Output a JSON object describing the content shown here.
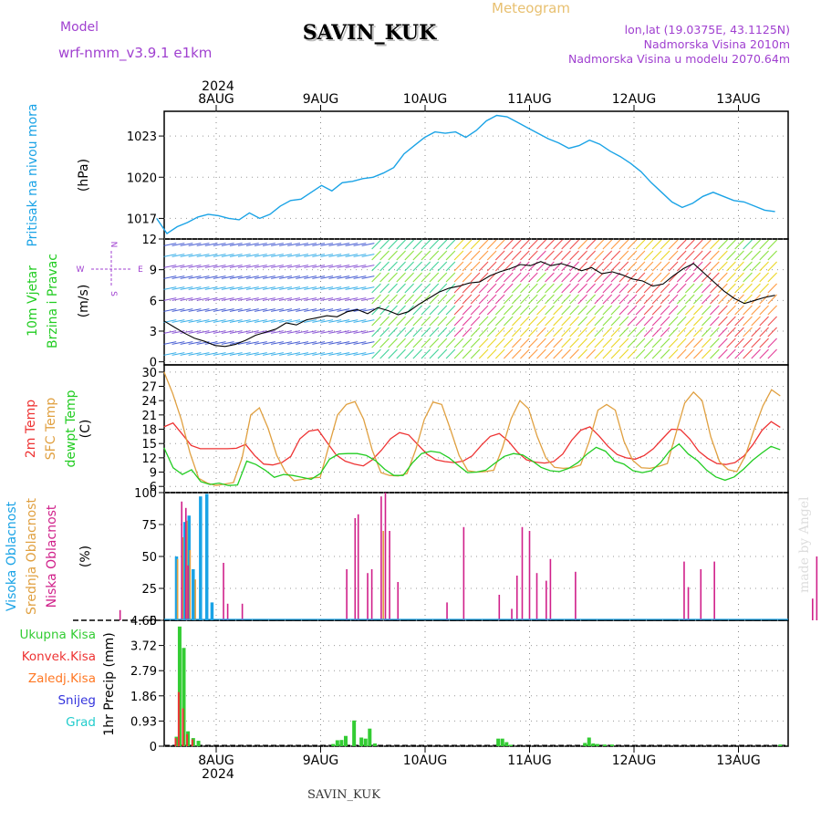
{
  "header": {
    "model_label": "Model",
    "model_value": "wrf-nmm_v3.9.1 e1km",
    "station": "SAVIN_KUK",
    "meteogram": "Meteogram",
    "lonlat": "lon,lat (19.0375E, 43.1125N)",
    "elevation": "Nadmorska Visina 2010m",
    "model_elevation": "Nadmorska Visina u modelu 2070.64m",
    "footer_station": "SAVIN_KUK",
    "credit": "made by Angel"
  },
  "colors": {
    "pressure": "#1aa3e6",
    "wind_label": "#22cc22",
    "t2m": "#ee3333",
    "sfc": "#e0a040",
    "dewpt": "#22cc22",
    "cloud_high": "#1aa3e6",
    "cloud_mid": "#e0a040",
    "cloud_low": "#d0208a",
    "precip_total": "#33cc33",
    "precip_conv": "#ee3333",
    "precip_frz": "#ff7722",
    "precip_snow": "#3333dd",
    "precip_hail": "#22cccc",
    "purple": "#a040d0",
    "gold": "#e8c070"
  },
  "axis": {
    "year_top": "2024",
    "year_bottom": "2024",
    "days": [
      "8AUG",
      "9AUG",
      "10AUG",
      "11AUG",
      "12AUG",
      "13AUG"
    ]
  },
  "chart_data": [
    {
      "type": "line",
      "panel": "pressure",
      "ylabel_main": "Pritisak na nivou mora",
      "ylabel_unit": "(hPa)",
      "ylim": [
        1015.5,
        1024.8
      ],
      "yticks": [
        "1023",
        "1020",
        "1017"
      ],
      "x_day_offset_start": -0.57,
      "x_day_offset_end": 5.35,
      "series": [
        {
          "values": [
            1017.0,
            1015.9,
            1016.4,
            1016.7,
            1017.1,
            1017.3,
            1017.2,
            1017.0,
            1016.9,
            1017.4,
            1017.0,
            1017.3,
            1017.9,
            1018.3,
            1018.4,
            1018.9,
            1019.4,
            1019.0,
            1019.6,
            1019.7,
            1019.9,
            1020.0,
            1020.3,
            1020.7,
            1021.7,
            1022.3,
            1022.9,
            1023.3,
            1023.2,
            1023.3,
            1022.9,
            1023.4,
            1024.1,
            1024.5,
            1024.4,
            1024.0,
            1023.6,
            1023.2,
            1022.8,
            1022.5,
            1022.1,
            1022.3,
            1022.7,
            1022.4,
            1021.9,
            1021.5,
            1021.0,
            1020.4,
            1019.6,
            1018.9,
            1018.2,
            1017.8,
            1018.1,
            1018.6,
            1018.9,
            1018.6,
            1018.3,
            1018.2,
            1017.9,
            1017.6,
            1017.5
          ]
        }
      ]
    },
    {
      "type": "line",
      "panel": "wind",
      "ylabel_main": "10m Vjetar",
      "ylabel_sub": "Brzina i Pravac",
      "ylabel_unit": "(m/s)",
      "ylim": [
        -0.3,
        12
      ],
      "yticks": [
        "0",
        "3",
        "6",
        "9",
        "12"
      ],
      "compass": {
        "n": "N",
        "s": "S",
        "e": "E",
        "w": "W"
      },
      "series": [
        {
          "values": [
            4.0,
            3.4,
            2.8,
            2.3,
            2.0,
            1.6,
            1.5,
            1.7,
            2.1,
            2.6,
            2.9,
            3.2,
            3.8,
            3.6,
            4.1,
            4.3,
            4.5,
            4.4,
            4.9,
            5.1,
            4.7,
            5.3,
            5.0,
            4.6,
            4.9,
            5.6,
            6.2,
            6.8,
            7.2,
            7.4,
            7.7,
            7.8,
            8.4,
            8.8,
            9.1,
            9.5,
            9.4,
            9.8,
            9.4,
            9.6,
            9.3,
            8.9,
            9.2,
            8.6,
            8.8,
            8.5,
            8.1,
            7.9,
            7.4,
            7.6,
            8.4,
            9.1,
            9.6,
            8.7,
            7.8,
            6.9,
            6.2,
            5.7,
            6.0,
            6.3,
            6.5
          ]
        }
      ]
    },
    {
      "type": "line",
      "panel": "temperature",
      "ylabel_lines": [
        "2m Temp",
        "SFC Temp",
        "dewpt Temp"
      ],
      "ylabel_unit": "(C)",
      "ylim": [
        4.7,
        31.5
      ],
      "yticks": [
        "30",
        "27",
        "24",
        "21",
        "18",
        "15",
        "12",
        "9",
        "6"
      ],
      "series": [
        {
          "name": "2m Temp",
          "values": [
            18.5,
            19.3,
            17.0,
            14.6,
            13.9,
            13.9,
            13.9,
            13.9,
            14.0,
            14.8,
            12.5,
            10.7,
            10.5,
            11.0,
            12.3,
            16.0,
            17.6,
            17.9,
            15.2,
            12.6,
            11.3,
            10.7,
            10.3,
            11.6,
            13.6,
            16.0,
            17.3,
            16.8,
            14.8,
            12.8,
            11.6,
            11.2,
            11.0,
            11.3,
            12.4,
            14.6,
            16.5,
            17.1,
            15.5,
            13.2,
            11.6,
            11.1,
            10.9,
            11.2,
            12.8,
            15.7,
            17.8,
            18.5,
            16.6,
            14.4,
            12.7,
            12.0,
            11.7,
            12.5,
            13.9,
            16.0,
            18.0,
            17.9,
            16.0,
            13.4,
            11.9,
            10.8,
            10.6,
            11.0,
            12.4,
            14.8,
            17.8,
            19.6,
            18.4
          ]
        },
        {
          "name": "SFC Temp",
          "values": [
            30.0,
            25.5,
            20.0,
            13.0,
            7.7,
            6.7,
            6.2,
            6.5,
            6.8,
            12.0,
            21.0,
            22.5,
            18.2,
            12.5,
            9.0,
            7.2,
            7.5,
            7.8,
            7.9,
            14.5,
            21.0,
            23.2,
            23.8,
            20.1,
            13.6,
            8.9,
            8.3,
            8.2,
            8.7,
            13.7,
            20.1,
            23.7,
            23.2,
            18.0,
            12.5,
            9.3,
            9.0,
            9.1,
            9.4,
            14.1,
            20.2,
            24.0,
            22.3,
            16.5,
            12.0,
            10.0,
            9.8,
            9.9,
            10.5,
            15.5,
            22.0,
            23.2,
            22.0,
            15.5,
            11.5,
            9.9,
            9.8,
            10.2,
            10.8,
            17.2,
            23.5,
            25.8,
            24.0,
            16.4,
            11.2,
            9.5,
            9.1,
            12.5,
            18.0,
            22.9,
            26.3,
            25.0
          ]
        },
        {
          "name": "dewpt Temp",
          "values": [
            14.1,
            9.9,
            8.5,
            9.5,
            7.0,
            6.4,
            6.7,
            6.2,
            6.3,
            11.3,
            10.6,
            9.4,
            7.9,
            8.5,
            8.3,
            7.9,
            7.5,
            8.7,
            11.7,
            12.8,
            12.9,
            12.9,
            12.5,
            11.4,
            9.6,
            8.3,
            8.3,
            10.9,
            12.9,
            13.4,
            13.1,
            12.0,
            10.4,
            8.9,
            9.0,
            9.4,
            10.9,
            12.3,
            12.9,
            12.6,
            11.4,
            10.0,
            9.3,
            9.1,
            9.8,
            11.0,
            12.8,
            14.2,
            13.4,
            11.3,
            10.7,
            9.3,
            8.9,
            9.3,
            11.0,
            13.5,
            14.9,
            12.8,
            11.4,
            9.4,
            8.0,
            7.3,
            8.0,
            9.6,
            11.5,
            13.0,
            14.4,
            13.7
          ]
        }
      ]
    },
    {
      "type": "bar",
      "panel": "clouds",
      "ylabel_lines": [
        "Visoka Oblacnost",
        "Srednja Oblacnost",
        "Niska Oblacnost"
      ],
      "ylabel_unit": "(%)",
      "ylim": [
        0,
        100
      ],
      "yticks": [
        "100",
        "75",
        "50",
        "25",
        "0"
      ],
      "series": [
        {
          "name": "Visoka Oblacnost",
          "x": [
            -0.38,
            -0.3,
            -0.26,
            -0.22,
            -0.15,
            -0.09,
            -0.04
          ],
          "values": [
            50,
            77,
            82,
            40,
            97,
            99,
            14
          ]
        },
        {
          "name": "Srednja Oblacnost",
          "x": [
            -0.37,
            -0.32,
            -0.28,
            -0.25,
            -0.2,
            1.6
          ],
          "values": [
            48,
            65,
            78,
            55,
            32,
            70
          ]
        },
        {
          "name": "Niska Oblacnost",
          "x": [
            -0.92,
            -0.33,
            -0.29,
            -0.27,
            0.07,
            0.11,
            0.25,
            1.25,
            1.33,
            1.36,
            1.45,
            1.49,
            1.58,
            1.62,
            1.66,
            1.74,
            2.21,
            2.37,
            2.71,
            2.83,
            2.88,
            2.93,
            3.0,
            3.07,
            3.16,
            3.2,
            3.44,
            4.48,
            4.52,
            4.64,
            4.77,
            5.71,
            5.75,
            5.87,
            5.91
          ],
          "values": [
            8,
            93,
            88,
            43,
            45,
            13,
            13,
            40,
            80,
            83,
            37,
            40,
            97,
            100,
            70,
            30,
            14,
            73,
            20,
            9,
            35,
            73,
            70,
            37,
            31,
            48,
            38,
            46,
            26,
            40,
            46,
            17,
            50,
            65,
            72
          ]
        }
      ]
    },
    {
      "type": "bar",
      "panel": "precip",
      "ylabel_lines": [
        "Ukupna Kisa",
        "Konvek.Kisa",
        "Zaledj.Kisa",
        "Snijeg",
        "Grad"
      ],
      "ylabel_unit": "1hr Precip (mm)",
      "ylim": [
        0,
        4.65
      ],
      "yticks": [
        "4.65",
        "3.72",
        "2.79",
        "1.86",
        "0.93",
        "0"
      ],
      "series": [
        {
          "name": "Ukupna Kisa",
          "x": [
            -0.38,
            -0.35,
            -0.31,
            -0.27,
            -0.22,
            -0.17,
            1.12,
            1.16,
            1.2,
            1.24,
            1.32,
            1.39,
            1.43,
            1.47,
            1.52,
            2.7,
            2.74,
            2.78,
            2.82,
            3.53,
            3.57,
            3.61,
            3.65,
            3.72,
            3.79,
            5.4
          ],
          "values": [
            0.35,
            4.42,
            3.63,
            0.55,
            0.3,
            0.2,
            0.08,
            0.22,
            0.23,
            0.38,
            0.95,
            0.32,
            0.28,
            0.65,
            0.1,
            0.28,
            0.28,
            0.15,
            0.05,
            0.12,
            0.32,
            0.1,
            0.08,
            0.06,
            0.06,
            0.06
          ]
        },
        {
          "name": "Konvek.Kisa",
          "x": [
            -0.38,
            -0.35,
            -0.31,
            -0.27,
            -0.22
          ],
          "values": [
            0.3,
            2.0,
            1.4,
            0.45,
            0.25
          ]
        }
      ]
    }
  ]
}
